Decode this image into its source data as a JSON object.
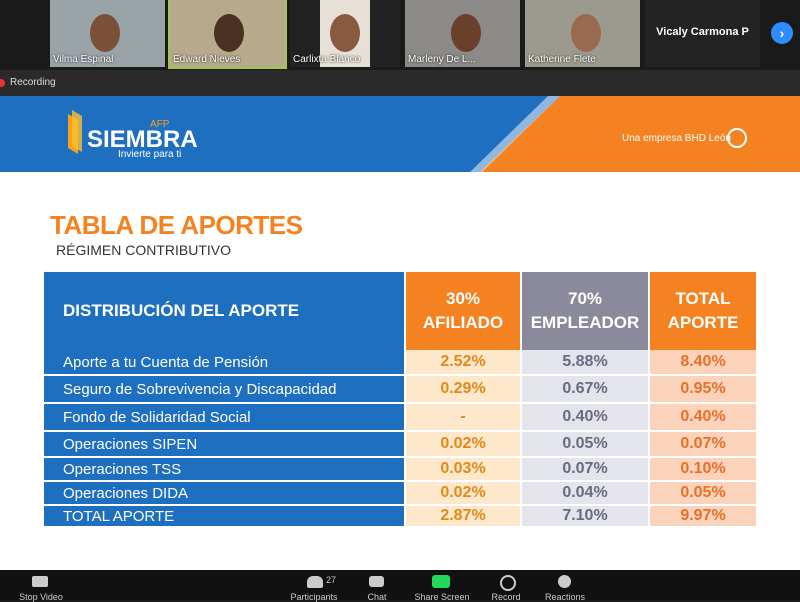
{
  "participants": [
    {
      "name": "Vilma Espinal"
    },
    {
      "name": "Edward Nieves"
    },
    {
      "name": "Carlixta Blanco"
    },
    {
      "name": "Marleny De L..."
    },
    {
      "name": "Katherine Flete"
    },
    {
      "name": "Vicaly Carmona P"
    }
  ],
  "recording": "Recording",
  "slide": {
    "logo": {
      "brand": "SIEMBRA",
      "tag": "AFP",
      "slogan": "Invierte para ti"
    },
    "partner": "Una empresa BHD León",
    "title": "TABLA DE APORTES",
    "subtitle": "RÉGIMEN CONTRIBUTIVO",
    "table": {
      "header": [
        [
          "DISTRIBUCIÓN DEL APORTE"
        ],
        [
          "30%",
          "AFILIADO"
        ],
        [
          "70%",
          "EMPLEADOR"
        ],
        [
          "TOTAL",
          "APORTE"
        ]
      ],
      "rows": [
        [
          "Aporte a tu Cuenta de Pensión",
          "2.52%",
          "5.88%",
          "8.40%"
        ],
        [
          "Seguro de Sobrevivencia y Discapacidad",
          "0.29%",
          "0.67%",
          "0.95%"
        ],
        [
          "Fondo de Solidaridad Social",
          "-",
          "0.40%",
          "0.40%"
        ],
        [
          "Operaciones SIPEN",
          "0.02%",
          "0.05%",
          "0.07%"
        ],
        [
          "Operaciones TSS",
          "0.03%",
          "0.07%",
          "0.10%"
        ],
        [
          "Operaciones DIDA",
          "0.02%",
          "0.04%",
          "0.05%"
        ],
        [
          "TOTAL APORTE",
          "2.87%",
          "7.10%",
          "9.97%"
        ]
      ]
    }
  },
  "toolbar": {
    "participants_count": "27",
    "buttons": [
      "Stop Video",
      "Participants",
      "Chat",
      "Share Screen",
      "Record",
      "Reactions"
    ]
  }
}
